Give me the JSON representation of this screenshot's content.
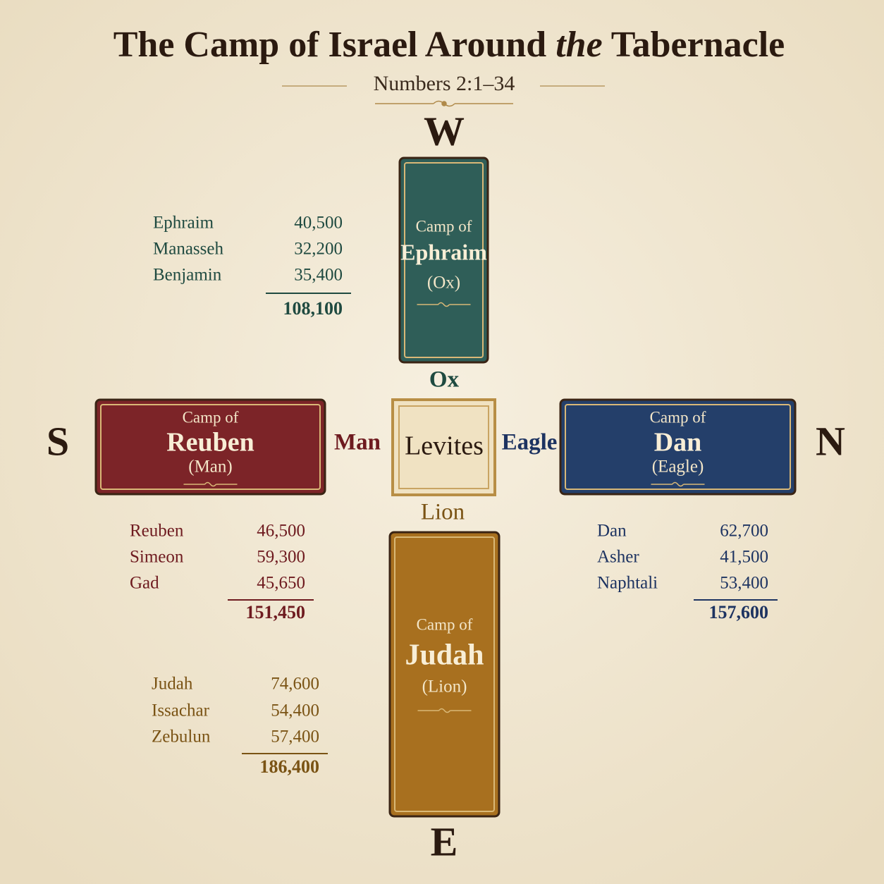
{
  "header": {
    "title_parts": [
      "The Camp of Israel Around",
      "the",
      "Tabernacle"
    ],
    "subtitle": "Numbers 2:1–34"
  },
  "directions": {
    "west": "W",
    "south": "S",
    "north": "N",
    "east": "E"
  },
  "center": {
    "label": "Levites"
  },
  "camps": [
    {
      "prefix": "Camp of",
      "name": "Ephraim",
      "emblem_paren": "(Ox)",
      "emblem": "Ox",
      "tribes": [
        {
          "name": "Ephraim",
          "count": "40,500"
        },
        {
          "name": "Manasseh",
          "count": "32,200"
        },
        {
          "name": "Benjamin",
          "count": "35,400"
        }
      ],
      "total": "108,100"
    },
    {
      "prefix": "Camp of",
      "name": "Reuben",
      "emblem_paren": "(Man)",
      "emblem": "Man",
      "tribes": [
        {
          "name": "Reuben",
          "count": "46,500"
        },
        {
          "name": "Simeon",
          "count": "59,300"
        },
        {
          "name": "Gad",
          "count": "45,650"
        }
      ],
      "total": "151,450"
    },
    {
      "prefix": "Camp of",
      "name": "Dan",
      "emblem_paren": "(Eagle)",
      "emblem": "Eagle",
      "tribes": [
        {
          "name": "Dan",
          "count": "62,700"
        },
        {
          "name": "Asher",
          "count": "41,500"
        },
        {
          "name": "Naphtali",
          "count": "53,400"
        }
      ],
      "total": "157,600"
    },
    {
      "prefix": "Camp of",
      "name": "Judah",
      "emblem_paren": "(Lion)",
      "emblem": "Lion",
      "tribes": [
        {
          "name": "Judah",
          "count": "74,600"
        },
        {
          "name": "Issachar",
          "count": "54,400"
        },
        {
          "name": "Zebulun",
          "count": "57,400"
        }
      ],
      "total": "186,400"
    }
  ]
}
